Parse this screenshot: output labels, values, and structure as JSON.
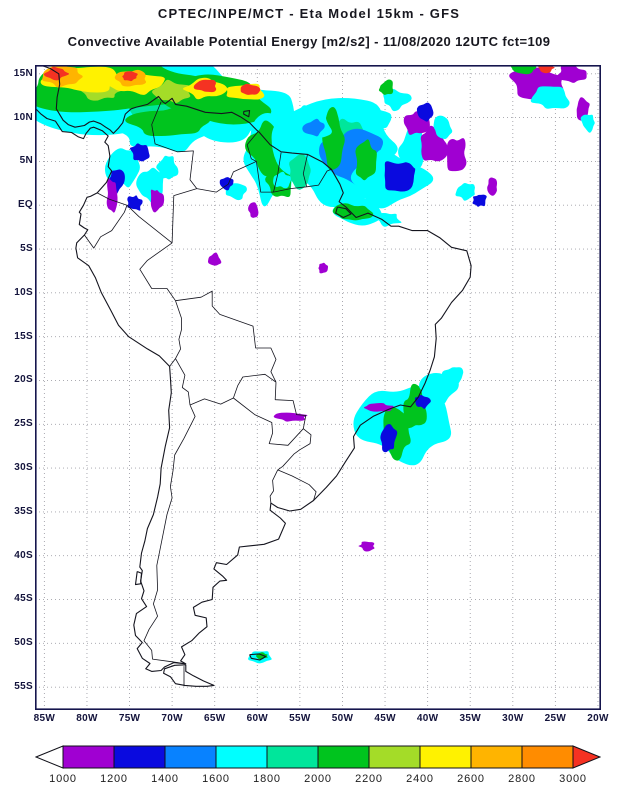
{
  "header": {
    "line1": "CPTEC/INPE/MCT -  Eta Model 15km - GFS",
    "line2": "Convective Available Potential Energy [m2/s2] - 11/08/2020 12UTC fct=109"
  },
  "map": {
    "lat_labels": [
      "15N",
      "10N",
      "5N",
      "EQ",
      "5S",
      "10S",
      "15S",
      "20S",
      "25S",
      "30S",
      "35S",
      "40S",
      "45S",
      "50S",
      "55S"
    ],
    "lon_labels": [
      "85W",
      "80W",
      "75W",
      "70W",
      "65W",
      "60W",
      "55W",
      "50W",
      "45W",
      "40W",
      "35W",
      "30W",
      "25W",
      "20W"
    ],
    "frame_color": "#15154d",
    "grid_color": "#a0a0a8",
    "outline_color": "#14141e"
  },
  "colorbar": {
    "values": [
      "1000",
      "1200",
      "1400",
      "1600",
      "1800",
      "2000",
      "2200",
      "2400",
      "2600",
      "2800",
      "3000"
    ],
    "cell_colors": [
      "#a000d2",
      "#0a0adf",
      "#0882ff",
      "#00ffff",
      "#00e69b",
      "#00c41e",
      "#a4dc28",
      "#fff200",
      "#ffb400",
      "#ff8c00"
    ],
    "under_arrow_color": "#ffffff",
    "over_arrow_color": "#f53222",
    "outline_color": "#101018"
  }
}
